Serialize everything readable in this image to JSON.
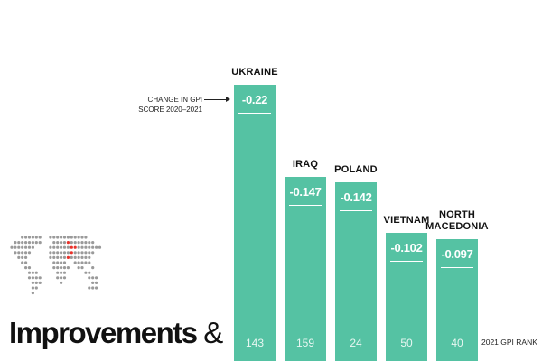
{
  "chart_data": {
    "type": "bar",
    "title": "Improvements &",
    "title_main": "Improvements",
    "title_amp": "&",
    "annotation_line1": "CHANGE IN GPI",
    "annotation_line2": "SCORE 2020–2021",
    "rank_axis_label": "2021 GPI RANK",
    "categories": [
      {
        "name_lines": [
          "UKRAINE"
        ],
        "change": -0.22,
        "change_label": "-0.22",
        "rank": 143
      },
      {
        "name_lines": [
          "IRAQ"
        ],
        "change": -0.147,
        "change_label": "-0.147",
        "rank": 159
      },
      {
        "name_lines": [
          "POLAND"
        ],
        "change": -0.142,
        "change_label": "-0.142",
        "rank": 24
      },
      {
        "name_lines": [
          "VIETNAM"
        ],
        "change": -0.102,
        "change_label": "-0.102",
        "rank": 50
      },
      {
        "name_lines": [
          "NORTH",
          "MACEDONIA"
        ],
        "change": -0.097,
        "change_label": "-0.097",
        "rank": 40
      }
    ],
    "value_axis": "absolute change",
    "ylim": [
      0,
      0.22
    ],
    "bar_color": "#55c2a3",
    "map_highlight_color": "#e8312a"
  }
}
